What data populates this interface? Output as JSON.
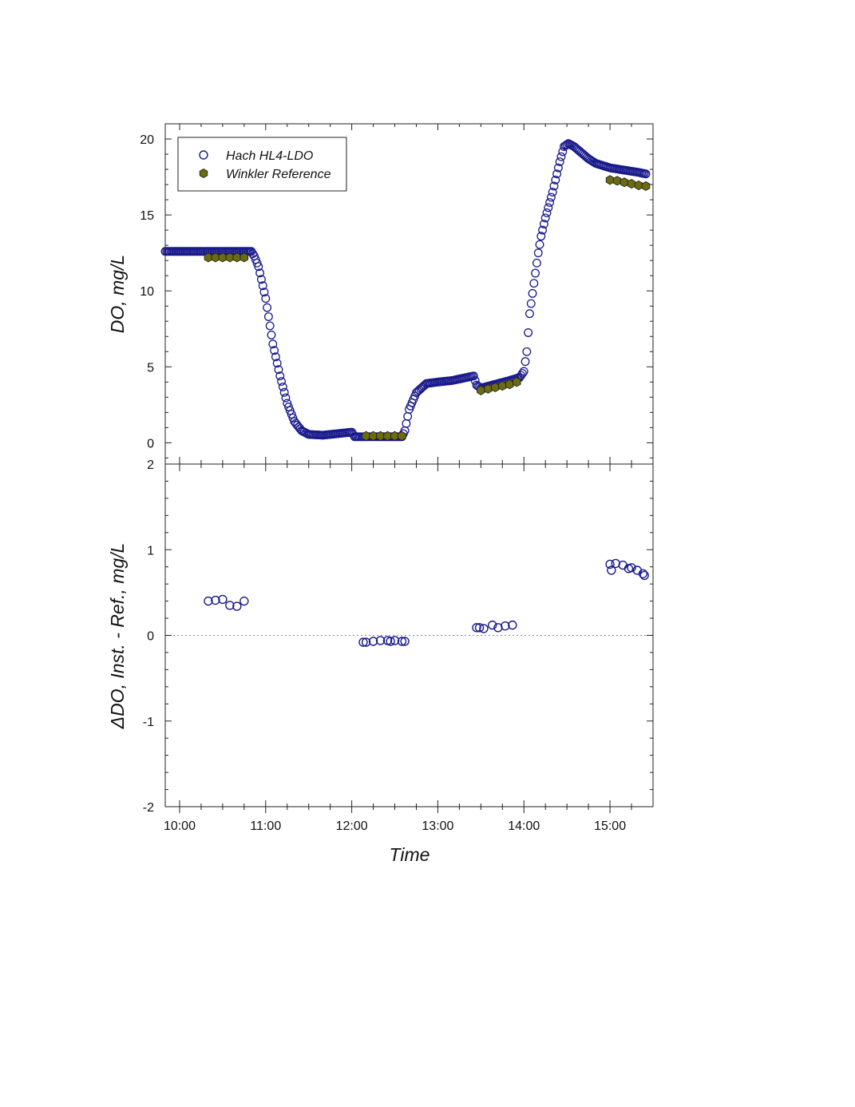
{
  "chart_data": [
    {
      "type": "scatter",
      "panel": "top",
      "xlabel": "Time",
      "ylabel": "DO, mg/L",
      "xlim": [
        "09:50",
        "15:30"
      ],
      "ylim": [
        -1.4,
        21
      ],
      "yticks": [
        0,
        5,
        10,
        15,
        20
      ],
      "ytick_labels": [
        "0",
        "5",
        "10",
        "15",
        "20"
      ],
      "legend_placement": "top-left",
      "grid": false,
      "series": [
        {
          "name": "Hach HL4-LDO",
          "marker": "open-circle",
          "color": "#1a1a8c",
          "trace_x": [
            "09:50",
            "10:00",
            "10:20",
            "10:40",
            "10:50",
            "10:52",
            "10:55",
            "11:00",
            "11:05",
            "11:10",
            "11:15",
            "11:20",
            "11:25",
            "11:30",
            "11:40",
            "12:00",
            "12:02",
            "12:10",
            "12:35",
            "12:37",
            "12:40",
            "12:45",
            "12:52",
            "13:00",
            "13:10",
            "13:20",
            "13:25",
            "13:27",
            "13:30",
            "13:40",
            "13:50",
            "13:57",
            "14:00",
            "14:02",
            "14:04",
            "14:07",
            "14:10",
            "14:12",
            "14:15",
            "14:20",
            "14:25",
            "14:28",
            "14:31",
            "14:35",
            "14:40",
            "14:45",
            "14:50",
            "15:00",
            "15:10",
            "15:20",
            "15:25"
          ],
          "trace_y": [
            12.6,
            12.6,
            12.6,
            12.6,
            12.6,
            12.3,
            11.6,
            9.5,
            6.5,
            4.4,
            2.6,
            1.4,
            0.8,
            0.55,
            0.5,
            0.7,
            0.4,
            0.4,
            0.4,
            0.8,
            2.2,
            3.3,
            3.9,
            4.0,
            4.1,
            4.3,
            4.4,
            3.8,
            3.6,
            3.85,
            4.1,
            4.3,
            4.7,
            6.0,
            8.5,
            10.5,
            12.5,
            13.6,
            14.8,
            16.5,
            18.5,
            19.5,
            19.7,
            19.5,
            19.1,
            18.7,
            18.4,
            18.1,
            17.95,
            17.8,
            17.7
          ]
        },
        {
          "name": "Winkler Reference",
          "marker": "filled-hexagon",
          "color": "#6b6b12",
          "x": [
            "10:20",
            "10:25",
            "10:30",
            "10:35",
            "10:40",
            "10:45",
            "12:10",
            "12:15",
            "12:20",
            "12:25",
            "12:30",
            "12:35",
            "13:30",
            "13:35",
            "13:40",
            "13:45",
            "13:50",
            "13:55",
            "15:00",
            "15:05",
            "15:10",
            "15:15",
            "15:20",
            "15:25"
          ],
          "y": [
            12.2,
            12.2,
            12.2,
            12.2,
            12.2,
            12.2,
            0.45,
            0.45,
            0.45,
            0.45,
            0.45,
            0.45,
            3.45,
            3.55,
            3.65,
            3.75,
            3.85,
            4.0,
            17.3,
            17.25,
            17.15,
            17.05,
            16.95,
            16.9
          ]
        }
      ]
    },
    {
      "type": "scatter",
      "panel": "bottom",
      "xlabel": "Time",
      "ylabel": "ΔDO, Inst. - Ref., mg/L",
      "xlim": [
        "09:50",
        "15:30"
      ],
      "ylim": [
        -2,
        2
      ],
      "yticks": [
        -2,
        -1,
        0,
        1,
        2
      ],
      "ytick_labels": [
        "-2",
        "-1",
        "0",
        "1",
        "2"
      ],
      "xticks": [
        "10:00",
        "11:00",
        "12:00",
        "13:00",
        "14:00",
        "15:00"
      ],
      "reference_line": 0,
      "grid": false,
      "series": [
        {
          "marker": "open-circle",
          "color": "#1a1a8c",
          "x": [
            "10:20",
            "10:25",
            "10:30",
            "10:35",
            "10:40",
            "10:45",
            "12:08",
            "12:10",
            "12:15",
            "12:20",
            "12:25",
            "12:27",
            "12:30",
            "12:35",
            "12:37",
            "13:27",
            "13:29",
            "13:32",
            "13:38",
            "13:42",
            "13:47",
            "13:52",
            "15:00",
            "15:01",
            "15:04",
            "15:09",
            "15:13",
            "15:15",
            "15:19",
            "15:23",
            "15:24"
          ],
          "y": [
            0.4,
            0.41,
            0.42,
            0.35,
            0.34,
            0.4,
            -0.08,
            -0.08,
            -0.07,
            -0.06,
            -0.06,
            -0.07,
            -0.06,
            -0.07,
            -0.07,
            0.09,
            0.09,
            0.08,
            0.12,
            0.09,
            0.11,
            0.12,
            0.83,
            0.76,
            0.84,
            0.82,
            0.78,
            0.79,
            0.76,
            0.72,
            0.7
          ]
        }
      ]
    }
  ]
}
